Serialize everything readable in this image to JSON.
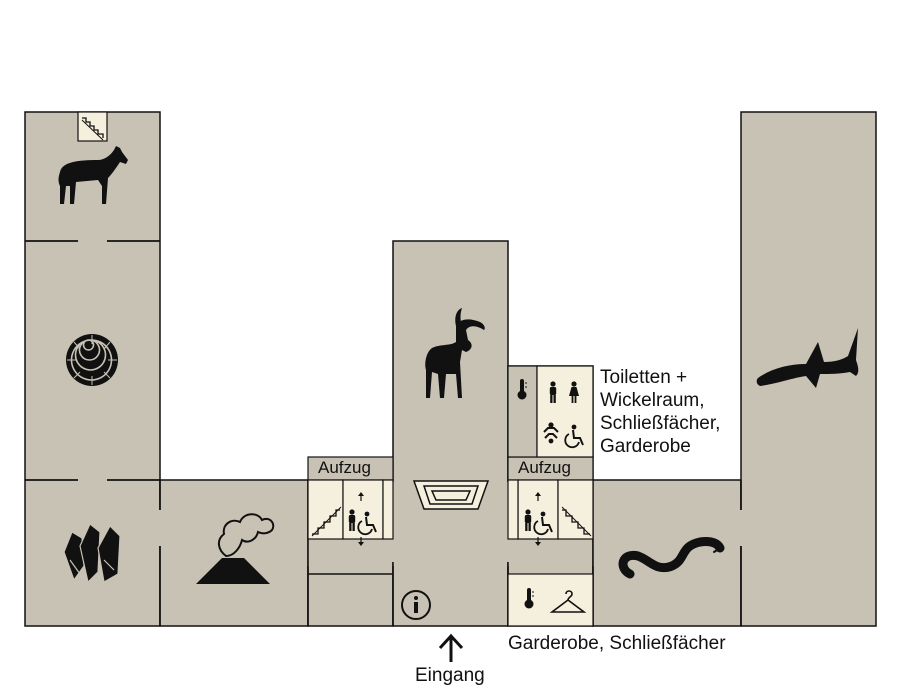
{
  "map": {
    "labels": {
      "toilets_line1": "Toiletten +",
      "toilets_line2": "Wickelraum,",
      "toilets_line3": "Schließfächer,",
      "toilets_line4": "Garderobe",
      "lift_left": "Aufzug",
      "lift_right": "Aufzug",
      "cloakroom_bottom": "Garderobe, Schließfächer",
      "entrance": "Eingang"
    },
    "icons": [
      "zebra-icon",
      "ammonite-icon",
      "crystal-icon",
      "volcano-icon",
      "ibex-icon",
      "shark-icon",
      "snake-icon",
      "info-icon",
      "thermometer-icon",
      "hanger-icon",
      "toilet-men-icon",
      "toilet-women-icon",
      "baby-changing-icon",
      "wheelchair-icon",
      "stairs-icon",
      "elevator-icon"
    ],
    "colors": {
      "room_fill": "#c8c2b5",
      "service_fill": "#f5f0de",
      "wall": "#111111",
      "pictogram": "#111111"
    }
  }
}
